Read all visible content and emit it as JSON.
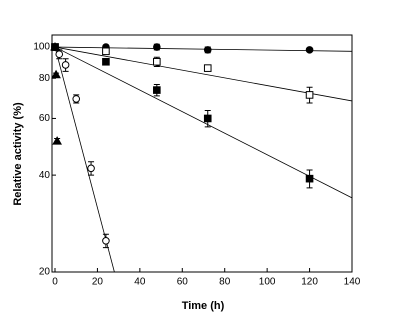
{
  "chart_data": {
    "type": "scatter",
    "xlabel": "Time (h)",
    "ylabel": "Relative activity (%)",
    "xlim": [
      0,
      140
    ],
    "xticks": [
      0,
      20,
      40,
      60,
      80,
      100,
      120,
      140
    ],
    "ylim": [
      20,
      109
    ],
    "yticks": [
      20,
      40,
      60,
      80,
      100
    ],
    "ylog": true,
    "series": [
      {
        "marker": "circle",
        "filled": true,
        "color": "#000",
        "x": [
          0,
          24,
          48,
          72,
          120
        ],
        "values": [
          100,
          100,
          100,
          98,
          98
        ],
        "errors": [
          1.5,
          1.5,
          2,
          2,
          1
        ],
        "fit": {
          "x": [
            0,
            140
          ],
          "values": [
            100,
            97
          ]
        }
      },
      {
        "marker": "square",
        "filled": false,
        "color": "#000",
        "x": [
          0,
          24,
          48,
          72,
          120
        ],
        "values": [
          100,
          97,
          90,
          86,
          71
        ],
        "errors": [
          1.5,
          2,
          3,
          1.5,
          4
        ],
        "fit": {
          "x": [
            0,
            140
          ],
          "values": [
            100,
            68
          ]
        }
      },
      {
        "marker": "square",
        "filled": true,
        "color": "#000",
        "x": [
          0,
          24,
          48,
          72,
          120
        ],
        "values": [
          100,
          90,
          73.5,
          60,
          39
        ],
        "errors": [
          1.5,
          1.5,
          3,
          3.5,
          2.5
        ],
        "fit": {
          "x": [
            0,
            140
          ],
          "values": [
            100,
            34
          ]
        }
      },
      {
        "marker": "circle",
        "filled": false,
        "color": "#000",
        "x": [
          2,
          5,
          10,
          17,
          24
        ],
        "values": [
          95,
          88,
          69,
          42,
          25
        ],
        "errors": [
          3,
          4,
          2,
          2,
          1.2
        ],
        "fit": {
          "x": [
            0,
            28
          ],
          "values": [
            100,
            20
          ]
        }
      },
      {
        "marker": "triangle",
        "filled": true,
        "color": "#000",
        "x": [
          0,
          0.5,
          1
        ],
        "values": [
          100,
          82,
          51
        ],
        "errors": [
          1,
          1,
          1
        ]
      }
    ]
  }
}
